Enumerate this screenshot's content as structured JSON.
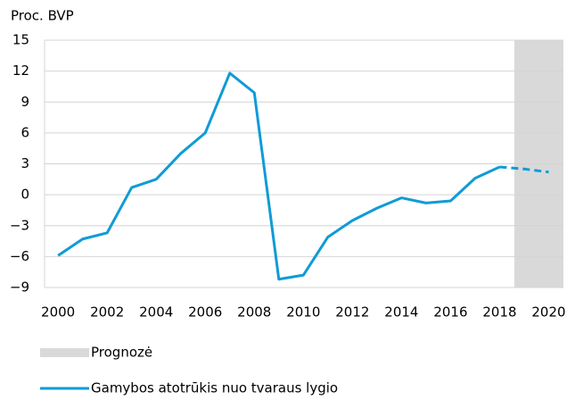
{
  "chart_data": {
    "type": "line",
    "ylabel": "Proc. BVP",
    "x": [
      2000,
      2001,
      2002,
      2003,
      2004,
      2005,
      2006,
      2007,
      2008,
      2009,
      2010,
      2011,
      2012,
      2013,
      2014,
      2015,
      2016,
      2017,
      2018,
      2019,
      2020
    ],
    "series": [
      {
        "name": "Gamybos atotrūkis nuo tvaraus lygio",
        "color": "#0f9bd7",
        "values": [
          -5.9,
          -4.3,
          -3.7,
          0.7,
          1.5,
          4.0,
          6.0,
          11.8,
          9.9,
          -8.2,
          -7.8,
          -4.1,
          -2.5,
          -1.3,
          -0.3,
          -0.8,
          -0.6,
          1.6,
          2.7,
          2.5,
          2.2
        ]
      }
    ],
    "dashed_from": 2018,
    "shaded_region": {
      "name": "Prognozė",
      "from": 2018.6,
      "to": 2020.6,
      "color": "#d9d9d9"
    },
    "xlim": [
      1999.45,
      2020.6
    ],
    "xticks": [
      2000,
      2002,
      2004,
      2006,
      2008,
      2010,
      2012,
      2014,
      2016,
      2018,
      2020
    ],
    "ylim": [
      -9,
      15
    ],
    "yticks": [
      {
        "value": -9,
        "label": "−9"
      },
      {
        "value": -6,
        "label": "−6"
      },
      {
        "value": -3,
        "label": "−3"
      },
      0,
      3,
      6,
      9,
      12,
      15
    ],
    "grid": true
  }
}
